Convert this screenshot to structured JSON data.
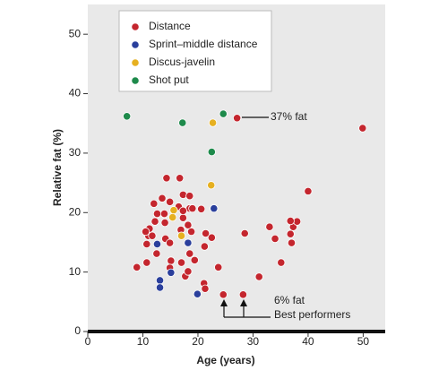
{
  "chart_data": {
    "type": "scatter",
    "xlabel": "Age (years)",
    "ylabel": "Relative fat (%)",
    "xlim": [
      0,
      54
    ],
    "xticks": [
      0,
      10,
      20,
      30,
      40,
      50
    ],
    "ylim": [
      0,
      55
    ],
    "yticks": [
      0,
      10,
      20,
      30,
      40,
      50
    ],
    "legend": "upper left",
    "annotations": [
      "37% fat",
      "6% fat",
      "Best performers"
    ],
    "series": [
      {
        "name": "Distance",
        "color": "#c4262e",
        "x": [
          27.1,
          49.9,
          40,
          37.3,
          38,
          36.8,
          36.8,
          37,
          33,
          34,
          35.1,
          31.1,
          28.5,
          24.6,
          28.2,
          23.7,
          22.5,
          21.4,
          21.2,
          20.6,
          21.1,
          21.3,
          14.3,
          16.7,
          8.9,
          10.7,
          10.7,
          11,
          11.2,
          12.2,
          12,
          13.5,
          12.6,
          14,
          14.9,
          13.9,
          16.5,
          17.3,
          18.5,
          18.5,
          17.3,
          18.8,
          18.5,
          17,
          17.7,
          18.2,
          19.4,
          15.1,
          14.9,
          12.5,
          14.1,
          14.9,
          11.7,
          17.3,
          18.2,
          19,
          10.5,
          16.9
        ],
        "values": [
          35.9,
          34.2,
          23.6,
          17.6,
          18.5,
          18.6,
          16.4,
          14.9,
          17.6,
          15.6,
          11.6,
          9.2,
          16.5,
          6.2,
          6.2,
          10.8,
          15.8,
          16.5,
          14.3,
          20.6,
          8.1,
          7.2,
          25.8,
          25.8,
          10.8,
          11.6,
          14.7,
          16.1,
          17.3,
          18.5,
          21.5,
          22.4,
          19.8,
          18.3,
          21.8,
          19.8,
          21,
          23,
          22.8,
          20.7,
          19.1,
          16.8,
          13.1,
          11.6,
          9.3,
          10.1,
          12,
          11.9,
          10.7,
          13.1,
          15.6,
          14.9,
          16.1,
          20.3,
          17.9,
          20.7,
          16.8,
          17.1
        ]
      },
      {
        "name": "Sprint–middle distance",
        "color": "#2a3f9c",
        "x": [
          22.9,
          18.2,
          12.6,
          13.1,
          13.1,
          15.1,
          19.9
        ],
        "values": [
          20.7,
          14.9,
          14.7,
          8.6,
          7.4,
          9.9,
          6.3
        ]
      },
      {
        "name": "Discus-javelin",
        "color": "#e6b020",
        "x": [
          22.7,
          22.4,
          15.6,
          15.4,
          17
        ],
        "values": [
          35.1,
          24.6,
          20.4,
          19.2,
          16.1
        ]
      },
      {
        "name": "Shot put",
        "color": "#1e8a4b",
        "x": [
          7.1,
          17.2,
          24.6,
          22.5
        ],
        "values": [
          36.2,
          35.1,
          36.6,
          30.2
        ]
      }
    ]
  }
}
